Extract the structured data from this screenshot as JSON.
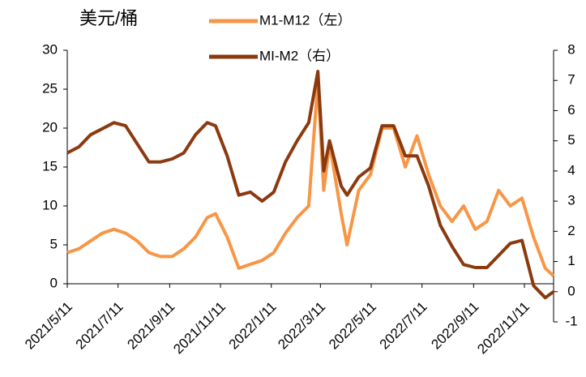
{
  "chart_data": {
    "type": "line",
    "y_label": "美元/桶",
    "x": [
      "2021/5/11",
      "2021/5/25",
      "2021/6/8",
      "2021/6/22",
      "2021/7/6",
      "2021/7/20",
      "2021/8/3",
      "2021/8/17",
      "2021/8/31",
      "2021/9/14",
      "2021/9/28",
      "2021/10/12",
      "2021/10/26",
      "2021/11/5",
      "2021/11/19",
      "2021/12/3",
      "2021/12/17",
      "2021/12/31",
      "2022/1/14",
      "2022/1/28",
      "2022/2/11",
      "2022/2/25",
      "2022/3/8",
      "2022/3/15",
      "2022/3/22",
      "2022/4/5",
      "2022/4/12",
      "2022/4/26",
      "2022/5/10",
      "2022/5/24",
      "2022/6/7",
      "2022/6/21",
      "2022/7/5",
      "2022/7/19",
      "2022/8/2",
      "2022/8/16",
      "2022/8/30",
      "2022/9/13",
      "2022/9/27",
      "2022/10/11",
      "2022/10/25",
      "2022/11/8",
      "2022/11/22",
      "2022/12/6",
      "2022/12/16"
    ],
    "series": [
      {
        "name": "M1-M12（左）",
        "color": "#f79646",
        "axis": "y",
        "values": [
          4,
          4.5,
          5.5,
          6.5,
          7,
          6.5,
          5.5,
          4,
          3.5,
          3.5,
          4.5,
          6,
          8.5,
          9,
          6,
          2,
          2.5,
          3,
          4,
          6.5,
          8.5,
          10,
          26,
          12,
          18,
          9,
          5,
          12,
          14,
          20,
          20,
          15,
          19,
          14,
          10,
          8,
          10,
          7,
          8,
          12,
          10,
          11,
          6,
          2,
          1
        ]
      },
      {
        "name": "MI-M2（右）",
        "color": "#8b3a0f",
        "axis": "y2",
        "values": [
          4.6,
          4.8,
          5.2,
          5.4,
          5.6,
          5.5,
          4.9,
          4.3,
          4.3,
          4.4,
          4.6,
          5.2,
          5.6,
          5.5,
          4.5,
          3.2,
          3.3,
          3.0,
          3.3,
          4.3,
          5.0,
          5.6,
          7.3,
          4.0,
          5.0,
          3.5,
          3.2,
          3.8,
          4.1,
          5.5,
          5.5,
          4.5,
          4.5,
          3.5,
          2.2,
          1.5,
          0.9,
          0.8,
          0.8,
          1.2,
          1.6,
          1.7,
          0.2,
          -0.2,
          0
        ]
      }
    ],
    "xlim": [
      "2021/5/11",
      "2022/12/16"
    ],
    "xticks": [
      "2021/5/11",
      "2021/7/11",
      "2021/9/11",
      "2021/11/11",
      "2022/1/11",
      "2022/3/11",
      "2022/5/11",
      "2022/7/11",
      "2022/9/11",
      "2022/11/11"
    ],
    "ylim": [
      0,
      30
    ],
    "yticks": [
      0,
      5,
      10,
      15,
      20,
      25,
      30
    ],
    "y2lim": [
      -1,
      8
    ],
    "y2ticks": [
      -1,
      0,
      1,
      2,
      3,
      4,
      5,
      6,
      7,
      8
    ],
    "grid": false
  }
}
